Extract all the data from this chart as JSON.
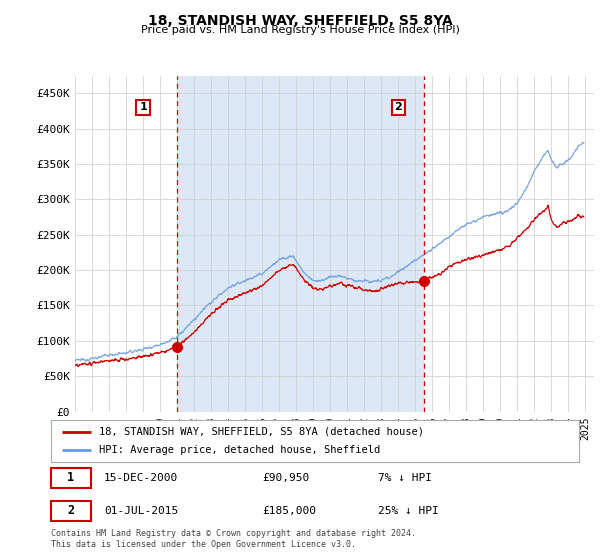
{
  "title": "18, STANDISH WAY, SHEFFIELD, S5 8YA",
  "subtitle": "Price paid vs. HM Land Registry's House Price Index (HPI)",
  "property_label": "18, STANDISH WAY, SHEFFIELD, S5 8YA (detached house)",
  "hpi_label": "HPI: Average price, detached house, Sheffield",
  "transaction1": {
    "label": "1",
    "date": "15-DEC-2000",
    "price": "£90,950",
    "pct": "7% ↓ HPI"
  },
  "transaction2": {
    "label": "2",
    "date": "01-JUL-2015",
    "price": "£185,000",
    "pct": "25% ↓ HPI"
  },
  "vline1_year": 2001.0,
  "vline2_year": 2015.5,
  "sale1_price": 90950,
  "sale2_price": 185000,
  "price_color": "#cc0000",
  "hpi_color": "#6699dd",
  "vline_color": "#cc0000",
  "bg_color": "#ffffff",
  "shade_color": "#dce8f5",
  "grid_color": "#cccccc",
  "footnote": "Contains HM Land Registry data © Crown copyright and database right 2024.\nThis data is licensed under the Open Government Licence v3.0.",
  "ylim": [
    0,
    475000
  ],
  "yticks": [
    0,
    50000,
    100000,
    150000,
    200000,
    250000,
    300000,
    350000,
    400000,
    450000
  ],
  "ytick_labels": [
    "£0",
    "£50K",
    "£100K",
    "£150K",
    "£200K",
    "£250K",
    "£300K",
    "£350K",
    "£400K",
    "£450K"
  ],
  "xmin": 1995,
  "xmax": 2025.5
}
